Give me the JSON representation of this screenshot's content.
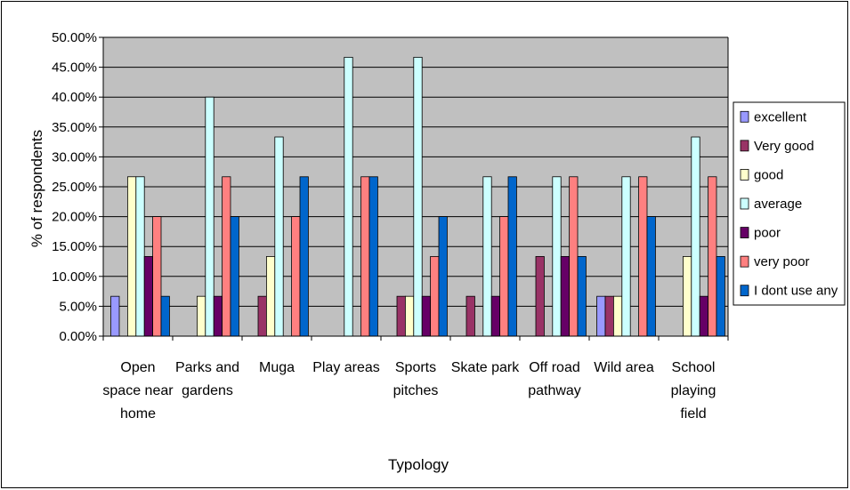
{
  "chart_data": {
    "type": "bar",
    "xlabel": "Typology",
    "ylabel": "% of respondents",
    "ylim": [
      0,
      50
    ],
    "y_tick_step": 5,
    "y_tick_labels": [
      "0.00%",
      "5.00%",
      "10.00%",
      "15.00%",
      "20.00%",
      "25.00%",
      "30.00%",
      "35.00%",
      "40.00%",
      "45.00%",
      "50.00%"
    ],
    "grid": true,
    "legend_position": "right",
    "categories": [
      [
        "Open",
        "space near",
        "home"
      ],
      [
        "Parks and",
        "gardens"
      ],
      [
        "Muga"
      ],
      [
        "Play areas"
      ],
      [
        "Sports",
        "pitches"
      ],
      [
        "Skate park"
      ],
      [
        "Off road",
        "pathway"
      ],
      [
        "Wild area"
      ],
      [
        "School",
        "playing",
        "field"
      ]
    ],
    "series": [
      {
        "name": "excellent",
        "color": "#9999ff",
        "values": [
          6.67,
          0,
          0,
          0,
          0,
          0,
          0,
          6.67,
          0
        ]
      },
      {
        "name": "Very good",
        "color": "#993366",
        "values": [
          0,
          0,
          6.67,
          0,
          6.67,
          6.67,
          13.33,
          6.67,
          0
        ]
      },
      {
        "name": "good",
        "color": "#ffffcc",
        "values": [
          26.67,
          6.67,
          13.33,
          0,
          6.67,
          0,
          0,
          6.67,
          13.33
        ]
      },
      {
        "name": "average",
        "color": "#ccffff",
        "values": [
          26.67,
          40.0,
          33.33,
          46.67,
          46.67,
          26.67,
          26.67,
          26.67,
          33.33
        ]
      },
      {
        "name": "poor",
        "color": "#660066",
        "values": [
          13.33,
          6.67,
          0,
          0,
          6.67,
          6.67,
          13.33,
          0,
          6.67
        ]
      },
      {
        "name": "very poor",
        "color": "#ff8080",
        "values": [
          20.0,
          26.67,
          20.0,
          26.67,
          13.33,
          20.0,
          26.67,
          26.67,
          26.67
        ]
      },
      {
        "name": "I dont use any",
        "color": "#0066cc",
        "values": [
          6.67,
          20.0,
          26.67,
          26.67,
          20.0,
          26.67,
          13.33,
          20.0,
          13.33
        ]
      }
    ],
    "plot_background": "#c0c0c0"
  }
}
